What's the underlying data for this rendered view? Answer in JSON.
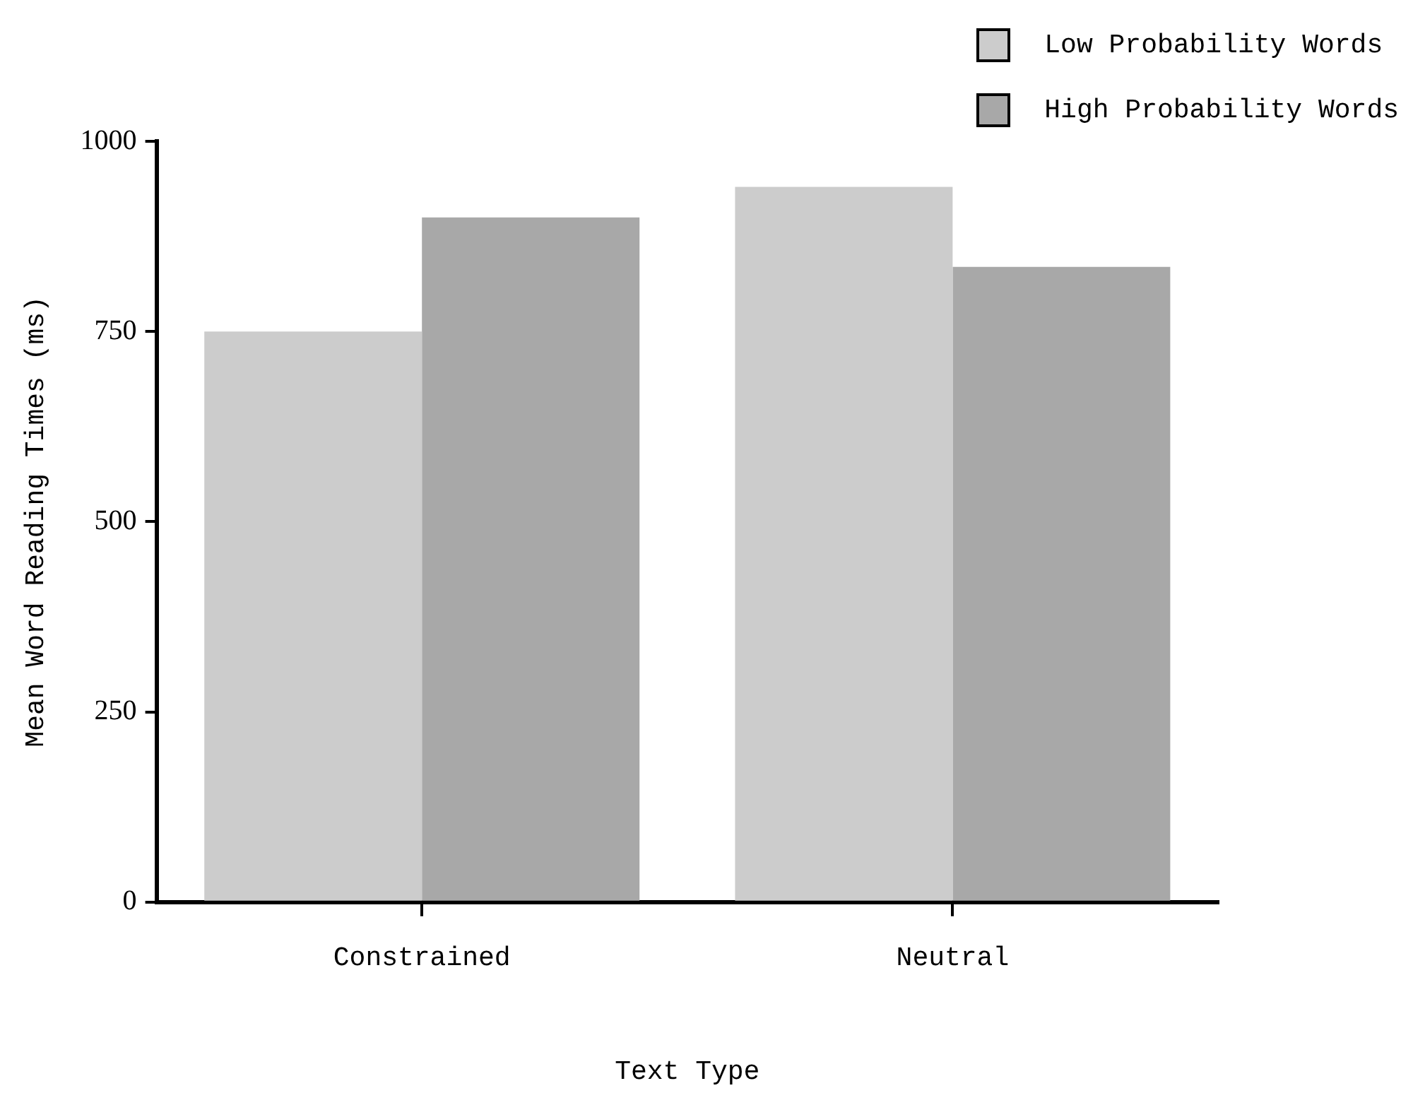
{
  "chart_data": {
    "type": "bar",
    "xlabel": "Text Type",
    "ylabel": "Mean Word Reading Times (ms)",
    "categories": [
      "Constrained",
      "Neutral"
    ],
    "series": [
      {
        "name": "Low Probability Words",
        "color": "#cccccc",
        "values": [
          750,
          940
        ]
      },
      {
        "name": "High Probability Words",
        "color": "#a8a8a8",
        "values": [
          900,
          835
        ]
      }
    ],
    "ylim": [
      0,
      1000
    ],
    "yticks": [
      0,
      250,
      500,
      750,
      1000
    ],
    "grid": false,
    "legend": "top right"
  }
}
